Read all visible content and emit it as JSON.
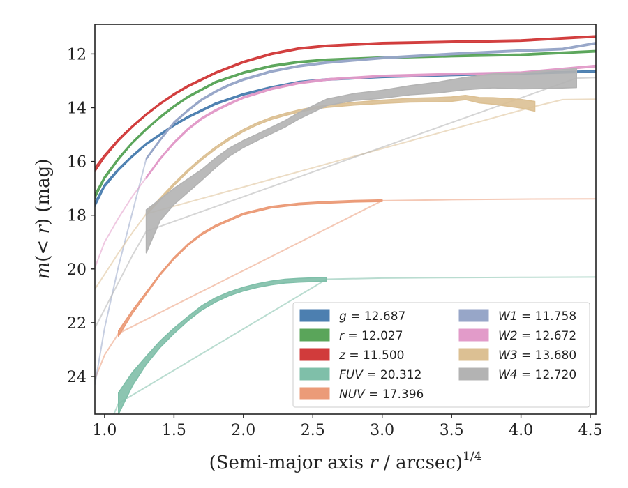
{
  "chart_data": {
    "type": "line",
    "xlabel": "(Semi-major axis r / arcsec)",
    "xlabel_name": "Semi-major axis",
    "xlabel_var": "r",
    "xlabel_unit": "arcsec",
    "xlabel_exponent": "1/4",
    "ylabel": "m(< r) (mag)",
    "ylabel_unit": "(mag)",
    "xlim": [
      0.93,
      4.54
    ],
    "ylim": [
      25.4,
      10.9
    ],
    "y_inverted": true,
    "xticks": [
      1.0,
      1.5,
      2.0,
      2.5,
      3.0,
      3.5,
      4.0,
      4.5
    ],
    "xtick_labels": [
      "1.0",
      "1.5",
      "2.0",
      "2.5",
      "3.0",
      "3.5",
      "4.0",
      "4.5"
    ],
    "yticks": [
      12,
      14,
      16,
      18,
      20,
      22,
      24
    ],
    "ytick_labels": [
      "12",
      "14",
      "16",
      "18",
      "20",
      "22",
      "24"
    ],
    "grid": false,
    "legend_position": "bottom-right",
    "series": [
      {
        "key": "g",
        "name": "g",
        "value": "12.687",
        "color": "#4c7fb0",
        "x": [
          0.93,
          1.0,
          1.1,
          1.2,
          1.3,
          1.4,
          1.5,
          1.6,
          1.8,
          2.0,
          2.2,
          2.4,
          2.6,
          3.0,
          3.5,
          4.0,
          4.54
        ],
        "y": [
          17.6,
          16.9,
          16.3,
          15.8,
          15.35,
          15.0,
          14.65,
          14.35,
          13.85,
          13.5,
          13.25,
          13.05,
          12.95,
          12.85,
          12.78,
          12.72,
          12.65
        ],
        "sigma": [
          0.08,
          0.05,
          0.04,
          0.03,
          0.03,
          0.03,
          0.03,
          0.03,
          0.03,
          0.03,
          0.03,
          0.03,
          0.03,
          0.03,
          0.03,
          0.03,
          0.03
        ],
        "extrapolated": false
      },
      {
        "key": "r",
        "name": "r",
        "value": "12.027",
        "color": "#5aa55a",
        "x": [
          0.93,
          1.0,
          1.1,
          1.2,
          1.3,
          1.4,
          1.5,
          1.6,
          1.8,
          2.0,
          2.2,
          2.4,
          2.6,
          3.0,
          3.5,
          4.0,
          4.54
        ],
        "y": [
          17.3,
          16.6,
          15.9,
          15.3,
          14.8,
          14.35,
          13.95,
          13.6,
          13.05,
          12.7,
          12.45,
          12.3,
          12.22,
          12.14,
          12.08,
          12.03,
          11.9
        ],
        "sigma": [
          0.08,
          0.05,
          0.04,
          0.03,
          0.03,
          0.03,
          0.03,
          0.03,
          0.03,
          0.03,
          0.03,
          0.03,
          0.03,
          0.03,
          0.03,
          0.03,
          0.03
        ],
        "extrapolated": false
      },
      {
        "key": "z",
        "name": "z",
        "value": "11.500",
        "color": "#d13b3b",
        "x": [
          0.93,
          1.0,
          1.1,
          1.2,
          1.3,
          1.4,
          1.5,
          1.6,
          1.8,
          2.0,
          2.2,
          2.4,
          2.6,
          3.0,
          3.5,
          4.0,
          4.54
        ],
        "y": [
          16.3,
          15.8,
          15.2,
          14.7,
          14.25,
          13.85,
          13.5,
          13.2,
          12.7,
          12.3,
          12.0,
          11.8,
          11.7,
          11.6,
          11.55,
          11.5,
          11.35
        ],
        "sigma": [
          0.08,
          0.05,
          0.04,
          0.03,
          0.03,
          0.03,
          0.03,
          0.03,
          0.03,
          0.03,
          0.03,
          0.03,
          0.03,
          0.03,
          0.03,
          0.03,
          0.03
        ],
        "extrapolated": false
      },
      {
        "key": "FUV",
        "name": "FUV",
        "value": "20.312",
        "color": "#7fbfa9",
        "x": [
          1.1,
          1.2,
          1.3,
          1.4,
          1.5,
          1.6,
          1.7,
          1.8,
          1.9,
          2.0,
          2.1,
          2.2,
          2.3,
          2.4,
          2.5,
          2.6
        ],
        "y": [
          25.0,
          24.1,
          23.4,
          22.8,
          22.3,
          21.85,
          21.45,
          21.15,
          20.92,
          20.75,
          20.62,
          20.52,
          20.45,
          20.42,
          20.4,
          20.38
        ],
        "sigma": [
          0.4,
          0.25,
          0.15,
          0.12,
          0.1,
          0.08,
          0.08,
          0.08,
          0.07,
          0.07,
          0.07,
          0.07,
          0.07,
          0.07,
          0.07,
          0.07
        ],
        "ext_x": [
          0.93,
          1.0,
          1.1,
          2.6,
          3.0,
          3.5,
          4.0,
          4.54
        ],
        "ext_y": [
          27.2,
          26.2,
          25.0,
          20.38,
          20.34,
          20.32,
          20.31,
          20.3
        ]
      },
      {
        "key": "NUV",
        "name": "NUV",
        "value": "17.396",
        "color": "#eb9b78",
        "x": [
          1.1,
          1.2,
          1.3,
          1.4,
          1.5,
          1.6,
          1.7,
          1.8,
          2.0,
          2.2,
          2.4,
          2.6,
          2.8,
          3.0
        ],
        "y": [
          22.4,
          21.6,
          20.9,
          20.2,
          19.6,
          19.1,
          18.7,
          18.4,
          17.95,
          17.7,
          17.58,
          17.52,
          17.48,
          17.46
        ],
        "sigma": [
          0.1,
          0.06,
          0.04,
          0.03,
          0.03,
          0.03,
          0.03,
          0.03,
          0.03,
          0.03,
          0.03,
          0.03,
          0.03,
          0.03
        ],
        "ext_x": [
          0.93,
          1.0,
          1.1,
          3.0,
          3.5,
          4.0,
          4.54
        ],
        "ext_y": [
          24.1,
          23.2,
          22.4,
          17.46,
          17.42,
          17.4,
          17.39
        ]
      },
      {
        "key": "W1",
        "name": "W1",
        "value": "11.758",
        "color": "#97a6c8",
        "x": [
          1.3,
          1.4,
          1.5,
          1.6,
          1.7,
          1.8,
          1.9,
          2.0,
          2.2,
          2.4,
          2.6,
          3.0,
          3.5,
          4.0,
          4.3,
          4.54
        ],
        "y": [
          15.9,
          15.2,
          14.55,
          14.1,
          13.7,
          13.4,
          13.15,
          12.95,
          12.65,
          12.45,
          12.32,
          12.15,
          12.0,
          11.88,
          11.82,
          11.6
        ],
        "sigma": [
          0.03,
          0.03,
          0.03,
          0.03,
          0.03,
          0.03,
          0.03,
          0.03,
          0.03,
          0.03,
          0.03,
          0.03,
          0.03,
          0.03,
          0.03,
          0.03
        ],
        "ext_x": [
          0.93,
          1.0,
          1.1,
          1.2,
          1.3
        ],
        "ext_y": [
          24.3,
          22.2,
          19.9,
          17.9,
          15.9
        ]
      },
      {
        "key": "W2",
        "name": "W2",
        "value": "12.672",
        "color": "#e29bc9",
        "x": [
          1.3,
          1.4,
          1.5,
          1.6,
          1.7,
          1.8,
          1.9,
          2.0,
          2.2,
          2.4,
          2.6,
          3.0,
          3.5,
          4.0,
          4.54
        ],
        "y": [
          16.6,
          15.9,
          15.3,
          14.8,
          14.4,
          14.1,
          13.85,
          13.62,
          13.3,
          13.08,
          12.95,
          12.82,
          12.75,
          12.7,
          12.45
        ],
        "sigma": [
          0.03,
          0.03,
          0.03,
          0.03,
          0.03,
          0.03,
          0.03,
          0.03,
          0.03,
          0.03,
          0.03,
          0.03,
          0.03,
          0.03,
          0.03
        ],
        "ext_x": [
          0.93,
          1.0,
          1.1,
          1.2,
          1.3
        ],
        "ext_y": [
          19.95,
          19.0,
          18.1,
          17.3,
          16.6
        ]
      },
      {
        "key": "W3",
        "name": "W3",
        "value": "13.680",
        "color": "#dcc093",
        "x": [
          1.3,
          1.4,
          1.5,
          1.6,
          1.7,
          1.8,
          1.9,
          2.0,
          2.1,
          2.2,
          2.3,
          2.4,
          2.5,
          2.6,
          2.8,
          3.0,
          3.2,
          3.4,
          3.5,
          3.6,
          3.7,
          3.8,
          3.9,
          4.0,
          4.1
        ],
        "y": [
          17.95,
          17.4,
          16.85,
          16.35,
          15.9,
          15.5,
          15.15,
          14.85,
          14.6,
          14.4,
          14.25,
          14.12,
          14.02,
          13.95,
          13.85,
          13.78,
          13.72,
          13.7,
          13.68,
          13.62,
          13.72,
          13.75,
          13.8,
          13.85,
          13.95
        ],
        "sigma": [
          0.05,
          0.04,
          0.04,
          0.04,
          0.04,
          0.04,
          0.04,
          0.04,
          0.04,
          0.04,
          0.04,
          0.04,
          0.04,
          0.04,
          0.05,
          0.06,
          0.07,
          0.08,
          0.08,
          0.08,
          0.1,
          0.12,
          0.14,
          0.16,
          0.18
        ],
        "ext_x": [
          0.93,
          1.0,
          1.1,
          1.2,
          1.3,
          4.1,
          4.3,
          4.54
        ],
        "ext_y": [
          20.75,
          20.2,
          19.4,
          18.65,
          17.95,
          13.95,
          13.7,
          13.68
        ]
      },
      {
        "key": "W4",
        "name": "W4",
        "value": "12.720",
        "color": "#b3b3b3",
        "x": [
          1.3,
          1.4,
          1.5,
          1.6,
          1.7,
          1.8,
          1.9,
          2.0,
          2.1,
          2.2,
          2.3,
          2.4,
          2.5,
          2.6,
          2.8,
          3.0,
          3.2,
          3.4,
          3.6,
          3.8,
          4.0,
          4.2,
          4.4
        ],
        "y": [
          18.6,
          17.8,
          17.3,
          16.9,
          16.5,
          16.05,
          15.65,
          15.35,
          15.1,
          14.85,
          14.6,
          14.3,
          14.05,
          13.8,
          13.6,
          13.5,
          13.35,
          13.25,
          13.1,
          13.0,
          13.0,
          12.95,
          12.9
        ],
        "sigma": [
          0.8,
          0.4,
          0.3,
          0.25,
          0.2,
          0.18,
          0.15,
          0.13,
          0.12,
          0.12,
          0.12,
          0.12,
          0.12,
          0.12,
          0.13,
          0.15,
          0.17,
          0.2,
          0.23,
          0.26,
          0.3,
          0.33,
          0.35
        ],
        "ext_x": [
          0.93,
          1.0,
          1.1,
          1.2,
          1.3,
          4.4,
          4.54
        ],
        "ext_y": [
          22.2,
          21.5,
          20.5,
          19.5,
          18.6,
          12.9,
          12.88
        ]
      }
    ]
  }
}
